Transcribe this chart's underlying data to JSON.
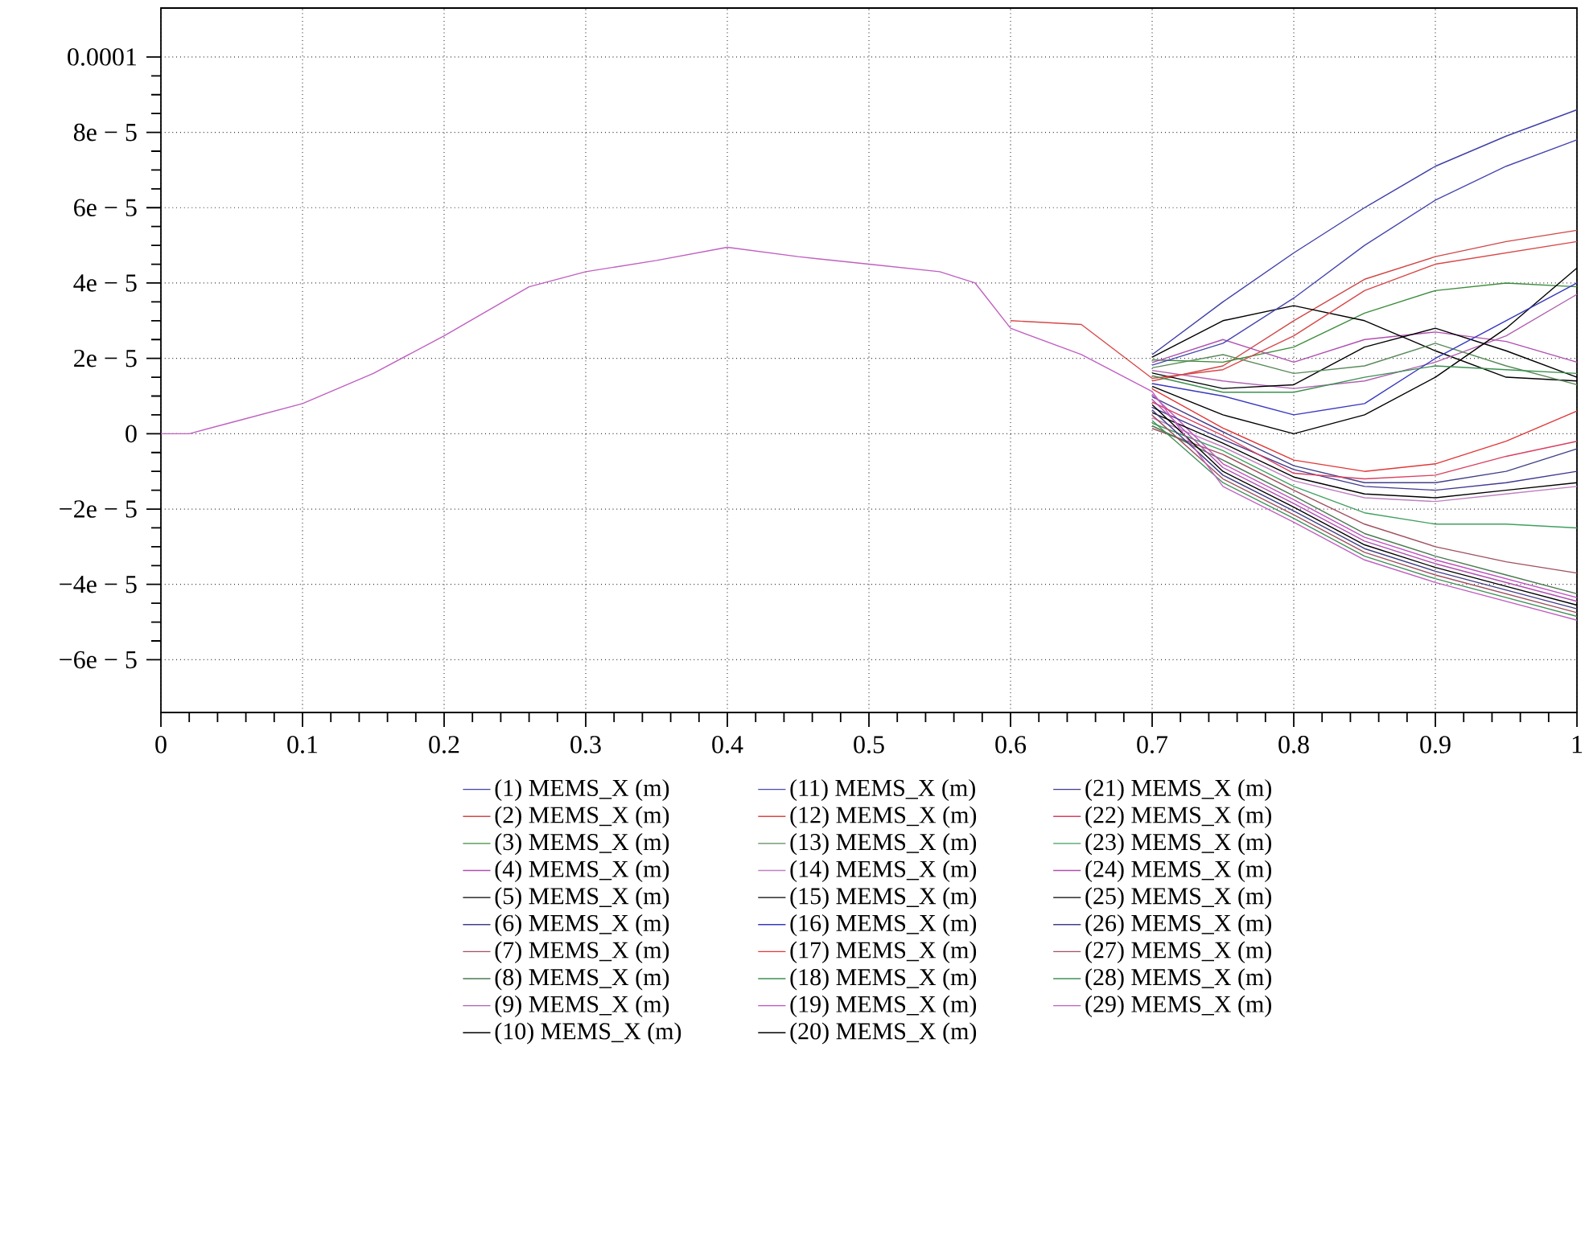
{
  "chart_data": {
    "type": "line",
    "x": [
      0,
      0.02,
      0.05,
      0.1,
      0.15,
      0.2,
      0.26,
      0.3,
      0.35,
      0.4,
      0.45,
      0.5,
      0.55,
      0.575,
      0.6,
      0.65,
      0.7,
      0.75,
      0.8,
      0.85,
      0.9,
      0.95,
      1
    ],
    "xlim": [
      0,
      1
    ],
    "ylim": [
      -7.4e-05,
      0.000113
    ],
    "xticks": [
      0,
      0.1,
      0.2,
      0.3,
      0.4,
      0.5,
      0.6,
      0.7,
      0.8,
      0.9,
      1
    ],
    "yticks": [
      {
        "value": -6e-05,
        "label": "−6e − 5"
      },
      {
        "value": -4e-05,
        "label": "−4e − 5"
      },
      {
        "value": -2e-05,
        "label": "−2e − 5"
      },
      0,
      {
        "value": 2e-05,
        "label": "2e − 5"
      },
      {
        "value": 4e-05,
        "label": "4e − 5"
      },
      {
        "value": 6e-05,
        "label": "6e − 5"
      },
      {
        "value": 8e-05,
        "label": "8e − 5"
      },
      0.0001
    ],
    "grid": true,
    "legend": "bottom",
    "line_style": "solid",
    "series": [
      {
        "name": "(1) MEMS_X (m)",
        "color": "#4040a8",
        "values": [
          null,
          null,
          null,
          null,
          null,
          null,
          null,
          null,
          null,
          null,
          null,
          null,
          null,
          null,
          null,
          null,
          2.1e-05,
          3.5e-05,
          4.8e-05,
          6e-05,
          7.1e-05,
          7.9e-05,
          8.6e-05
        ]
      },
      {
        "name": "(2) MEMS_X (m)",
        "color": "#d04848",
        "values": [
          null,
          null,
          null,
          null,
          null,
          null,
          null,
          null,
          null,
          null,
          null,
          null,
          null,
          null,
          null,
          null,
          1.4e-05,
          1.8e-05,
          3e-05,
          4.1e-05,
          4.7e-05,
          5.1e-05,
          5.4e-05
        ]
      },
      {
        "name": "(3) MEMS_X (m)",
        "color": "#3c8c3c",
        "values": [
          null,
          null,
          null,
          null,
          null,
          null,
          null,
          null,
          null,
          null,
          null,
          null,
          null,
          null,
          null,
          null,
          1.96e-05,
          1.9e-05,
          2.3e-05,
          3.2e-05,
          3.8e-05,
          4e-05,
          3.9e-05
        ]
      },
      {
        "name": "(4) MEMS_X (m)",
        "color": "#b050b0",
        "values": [
          null,
          null,
          null,
          null,
          null,
          null,
          null,
          null,
          null,
          null,
          null,
          null,
          null,
          null,
          null,
          null,
          1.89e-05,
          2.5e-05,
          1.9e-05,
          2.5e-05,
          2.7e-05,
          2.45e-05,
          1.9e-05
        ]
      },
      {
        "name": "(5) MEMS_X (m)",
        "color": "#000000",
        "values": [
          null,
          null,
          null,
          null,
          null,
          null,
          null,
          null,
          null,
          null,
          null,
          null,
          null,
          null,
          null,
          null,
          2.03e-05,
          3e-05,
          3.4e-05,
          3e-05,
          2.2e-05,
          1.5e-05,
          1.4e-05
        ]
      },
      {
        "name": "(6) MEMS_X (m)",
        "color": "#404088",
        "values": [
          null,
          null,
          null,
          null,
          null,
          null,
          null,
          null,
          null,
          null,
          null,
          null,
          null,
          null,
          null,
          null,
          9.8e-06,
          5e-07,
          -8.5e-06,
          -1.3e-05,
          -1.3e-05,
          -1e-05,
          -4e-06
        ]
      },
      {
        "name": "(7) MEMS_X (m)",
        "color": "#a05060",
        "values": [
          null,
          null,
          null,
          null,
          null,
          null,
          null,
          null,
          null,
          null,
          null,
          null,
          null,
          null,
          null,
          null,
          1.4e-06,
          -5.5e-06,
          -1.5e-05,
          -2.4e-05,
          -3e-05,
          -3.4e-05,
          -3.7e-05
        ]
      },
      {
        "name": "(8) MEMS_X (m)",
        "color": "#4a7a50",
        "values": [
          null,
          null,
          null,
          null,
          null,
          null,
          null,
          null,
          null,
          null,
          null,
          null,
          null,
          null,
          null,
          null,
          2.1e-06,
          -7e-06,
          -1.65e-05,
          -2.65e-05,
          -3.25e-05,
          -3.75e-05,
          -4.25e-05
        ]
      },
      {
        "name": "(9) MEMS_X (m)",
        "color": "#b060b0",
        "values": [
          null,
          null,
          null,
          null,
          null,
          null,
          null,
          null,
          null,
          null,
          null,
          null,
          null,
          null,
          null,
          null,
          1.68e-05,
          1.4e-05,
          1.2e-05,
          1.4e-05,
          1.9e-05,
          2.6e-05,
          3.7e-05
        ]
      },
      {
        "name": "(10) MEMS_X (m)",
        "color": "#000000",
        "values": [
          null,
          null,
          null,
          null,
          null,
          null,
          null,
          null,
          null,
          null,
          null,
          null,
          null,
          null,
          null,
          null,
          1.61e-05,
          1.2e-05,
          1.3e-05,
          2.3e-05,
          2.8e-05,
          2.2e-05,
          1.5e-05
        ]
      },
      {
        "name": "(11) MEMS_X (m)",
        "color": "#4848b0",
        "values": [
          null,
          null,
          null,
          null,
          null,
          null,
          null,
          null,
          null,
          null,
          null,
          null,
          null,
          null,
          null,
          null,
          1.82e-05,
          2.4e-05,
          3.6e-05,
          5e-05,
          6.2e-05,
          7.1e-05,
          7.8e-05
        ]
      },
      {
        "name": "(12) MEMS_X (m)",
        "color": "#d84848",
        "values": [
          null,
          null,
          null,
          null,
          null,
          null,
          null,
          null,
          null,
          null,
          null,
          null,
          null,
          null,
          3e-05,
          2.9e-05,
          1.47e-05,
          1.7e-05,
          2.6e-05,
          3.8e-05,
          4.5e-05,
          4.8e-05,
          5.1e-05
        ]
      },
      {
        "name": "(13) MEMS_X (m)",
        "color": "#5a8a5a",
        "values": [
          null,
          null,
          null,
          null,
          null,
          null,
          null,
          null,
          null,
          null,
          null,
          null,
          null,
          null,
          null,
          null,
          1.75e-05,
          2.1e-05,
          1.6e-05,
          1.8e-05,
          2.4e-05,
          1.8e-05,
          1.3e-05
        ]
      },
      {
        "name": "(14) MEMS_X (m)",
        "color": "#c080c0",
        "values": [
          null,
          null,
          null,
          null,
          null,
          null,
          null,
          null,
          null,
          null,
          null,
          null,
          null,
          null,
          null,
          null,
          4.2e-06,
          -3.5e-06,
          -1.25e-05,
          -1.7e-05,
          -1.8e-05,
          -1.6e-05,
          -1.4e-05
        ]
      },
      {
        "name": "(15) MEMS_X (m)",
        "color": "#000000",
        "values": [
          null,
          null,
          null,
          null,
          null,
          null,
          null,
          null,
          null,
          null,
          null,
          null,
          null,
          null,
          null,
          null,
          1.26e-05,
          5e-06,
          0,
          5e-06,
          1.5e-05,
          2.8e-05,
          4.4e-05
        ]
      },
      {
        "name": "(16) MEMS_X (m)",
        "color": "#3838c0",
        "values": [
          null,
          null,
          null,
          null,
          null,
          null,
          null,
          null,
          null,
          null,
          null,
          null,
          null,
          null,
          null,
          null,
          1.33e-05,
          1e-05,
          5e-06,
          8e-06,
          2e-05,
          3e-05,
          4e-05
        ]
      },
      {
        "name": "(17) MEMS_X (m)",
        "color": "#e03838",
        "values": [
          null,
          null,
          null,
          null,
          null,
          null,
          null,
          null,
          null,
          null,
          null,
          null,
          null,
          null,
          null,
          null,
          1.19e-05,
          1.5e-06,
          -7e-06,
          -1e-05,
          -8e-06,
          -2e-06,
          6e-06
        ]
      },
      {
        "name": "(18) MEMS_X (m)",
        "color": "#3c9050",
        "values": [
          null,
          null,
          null,
          null,
          null,
          null,
          null,
          null,
          null,
          null,
          null,
          null,
          null,
          null,
          null,
          null,
          1.54e-05,
          1.1e-05,
          1.1e-05,
          1.5e-05,
          1.8e-05,
          1.7e-05,
          1.6e-05
        ]
      },
      {
        "name": "(19) MEMS_X (m)",
        "color": "#c050c0",
        "values": [
          null,
          null,
          null,
          null,
          null,
          null,
          null,
          null,
          null,
          null,
          null,
          null,
          null,
          null,
          null,
          null,
          1.05e-05,
          -8e-06,
          -1.75e-05,
          -2.75e-05,
          -3.35e-05,
          -3.85e-05,
          -4.35e-05
        ]
      },
      {
        "name": "(20) MEMS_X (m)",
        "color": "#000000",
        "values": [
          null,
          null,
          null,
          null,
          null,
          null,
          null,
          null,
          null,
          null,
          null,
          null,
          null,
          null,
          null,
          null,
          5.6e-06,
          -2.5e-06,
          -1.15e-05,
          -1.6e-05,
          -1.7e-05,
          -1.5e-05,
          -1.3e-05
        ]
      },
      {
        "name": "(21) MEMS_X (m)",
        "color": "#403890",
        "values": [
          null,
          null,
          null,
          null,
          null,
          null,
          null,
          null,
          null,
          null,
          null,
          null,
          null,
          null,
          null,
          null,
          7e-06,
          -1.5e-06,
          -9.5e-06,
          -1.4e-05,
          -1.5e-05,
          -1.3e-05,
          -1e-05
        ]
      },
      {
        "name": "(22) MEMS_X (m)",
        "color": "#d84060",
        "values": [
          null,
          null,
          null,
          null,
          null,
          null,
          null,
          null,
          null,
          null,
          null,
          null,
          null,
          null,
          null,
          null,
          8.4e-06,
          -5e-07,
          -1.05e-05,
          -1.2e-05,
          -1.1e-05,
          -6e-06,
          -2e-06
        ]
      },
      {
        "name": "(23) MEMS_X (m)",
        "color": "#40a060",
        "values": [
          null,
          null,
          null,
          null,
          null,
          null,
          null,
          null,
          null,
          null,
          null,
          null,
          null,
          null,
          null,
          null,
          2.8e-06,
          -4.5e-06,
          -1.4e-05,
          -2.1e-05,
          -2.4e-05,
          -2.4e-05,
          -2.5e-05
        ]
      },
      {
        "name": "(24) MEMS_X (m)",
        "color": "#b050b0",
        "values": [
          null,
          null,
          null,
          null,
          null,
          null,
          null,
          null,
          null,
          null,
          null,
          null,
          null,
          null,
          null,
          null,
          9.1e-06,
          -9e-06,
          -1.85e-05,
          -2.85e-05,
          -3.45e-05,
          -3.95e-05,
          -4.45e-05
        ]
      },
      {
        "name": "(25) MEMS_X (m)",
        "color": "#000000",
        "values": [
          null,
          null,
          null,
          null,
          null,
          null,
          null,
          null,
          null,
          null,
          null,
          null,
          null,
          null,
          null,
          null,
          7.7e-06,
          -1e-05,
          -1.95e-05,
          -2.95e-05,
          -3.55e-05,
          -4.05e-05,
          -4.55e-05
        ]
      },
      {
        "name": "(26) MEMS_X (m)",
        "color": "#404088",
        "values": [
          null,
          null,
          null,
          null,
          null,
          null,
          null,
          null,
          null,
          null,
          null,
          null,
          null,
          null,
          null,
          null,
          6.3e-06,
          -1.1e-05,
          -2.05e-05,
          -3.05e-05,
          -3.65e-05,
          -4.15e-05,
          -4.65e-05
        ]
      },
      {
        "name": "(27) MEMS_X (m)",
        "color": "#a05060",
        "values": [
          null,
          null,
          null,
          null,
          null,
          null,
          null,
          null,
          null,
          null,
          null,
          null,
          null,
          null,
          null,
          null,
          4.9e-06,
          -1.2e-05,
          -2.15e-05,
          -3.15e-05,
          -3.75e-05,
          -4.25e-05,
          -4.75e-05
        ]
      },
      {
        "name": "(28) MEMS_X (m)",
        "color": "#40905a",
        "values": [
          null,
          null,
          null,
          null,
          null,
          null,
          null,
          null,
          null,
          null,
          null,
          null,
          null,
          null,
          null,
          null,
          3.5e-06,
          -1.3e-05,
          -2.25e-05,
          -3.25e-05,
          -3.85e-05,
          -4.35e-05,
          -4.85e-05
        ]
      },
      {
        "name": "(29) MEMS_X (m)",
        "color": "#c060c0",
        "values": [
          0,
          0,
          3e-06,
          8e-06,
          1.6e-05,
          2.6e-05,
          3.9e-05,
          4.3e-05,
          4.6e-05,
          4.95e-05,
          4.7e-05,
          4.5e-05,
          4.3e-05,
          4e-05,
          2.8e-05,
          2.1e-05,
          1.12e-05,
          -1.4e-05,
          -2.35e-05,
          -3.35e-05,
          -3.95e-05,
          -4.45e-05,
          -4.95e-05
        ]
      }
    ]
  }
}
